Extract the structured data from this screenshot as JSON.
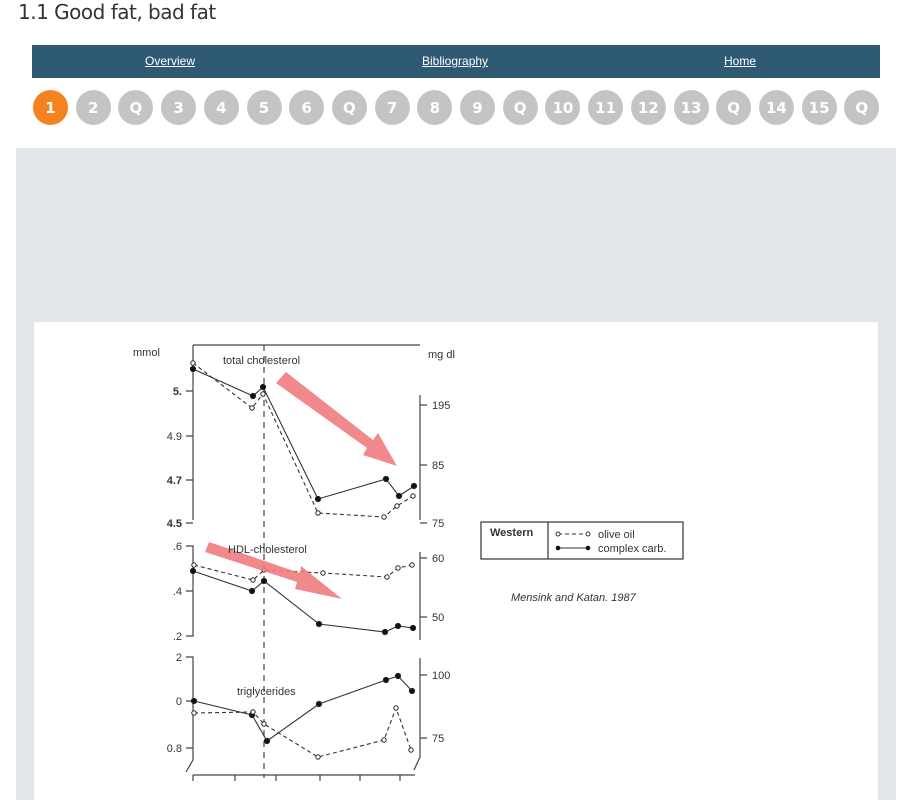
{
  "page": {
    "title": "1.1 Good fat, bad fat"
  },
  "nav": {
    "links": [
      "Overview",
      "Bibliography",
      "Home"
    ]
  },
  "pager": {
    "items": [
      "1",
      "2",
      "Q",
      "3",
      "4",
      "5",
      "6",
      "Q",
      "7",
      "8",
      "9",
      "Q",
      "10",
      "11",
      "12",
      "13",
      "Q",
      "14",
      "15",
      "Q"
    ],
    "active_index": 0,
    "active_color": "#f5821f",
    "inactive_color": "#c4c4c4"
  },
  "figure": {
    "left_unit": "mmol",
    "right_unit": "mg dl",
    "panels": {
      "total": {
        "label": "total cholesterol",
        "left_ticks": [
          "5.",
          "4.9",
          "4.7",
          "4.5"
        ],
        "right_ticks": [
          "195",
          "85",
          "75"
        ]
      },
      "hdl": {
        "label": "HDL-cholesterol",
        "left_ticks": [
          ".6",
          ".4",
          ".2"
        ],
        "right_ticks": [
          "60",
          "50"
        ]
      },
      "trig": {
        "label": "triglycerides",
        "left_ticks": [
          "2",
          "0",
          "0.8"
        ],
        "right_ticks": [
          "100",
          "75"
        ]
      }
    },
    "legend": {
      "group": "Western",
      "dashed": "olive oil",
      "solid": "complex carb."
    },
    "citation": "Mensink and Katan. 1987",
    "arrow_color": "#f07c80"
  }
}
